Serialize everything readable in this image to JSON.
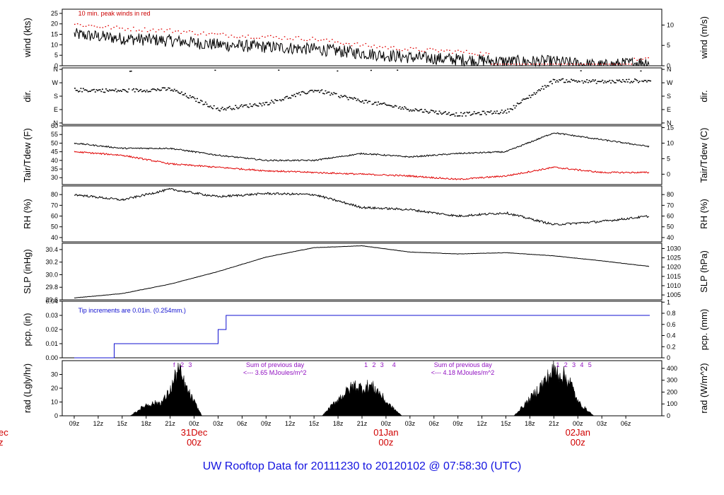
{
  "footer_title": "UW Rooftop Data for 20111230  to  20120102 @ 07:58:30  (UTC)",
  "colors": {
    "axis": "#000000",
    "series_black": "#000000",
    "series_red": "#e00000",
    "precip": "#1010d0",
    "annot_red": "#cc0000",
    "annot_purple": "#9010c0",
    "footer": "#1414e0",
    "day_label": "#d00000"
  },
  "x_axis": {
    "hour_ticks": [
      "09z",
      "12z",
      "15z",
      "18z",
      "21z",
      "00z",
      "03z",
      "06z",
      "09z",
      "12z",
      "15z",
      "18z",
      "21z",
      "00z",
      "03z",
      "06z",
      "09z",
      "12z",
      "15z",
      "18z",
      "21z",
      "00z",
      "03z",
      "06z"
    ],
    "day_labels": [
      {
        "day": "31Dec",
        "hour": "00z"
      },
      {
        "day": "01Jan",
        "hour": "00z"
      },
      {
        "day": "02Jan",
        "hour": "00z"
      }
    ],
    "clipped_left_day": "ec",
    "clipped_left_hour": "z"
  },
  "panels": [
    {
      "key": "wind",
      "left_label": "wind (kts)",
      "right_label": "wind (m/s)",
      "left_ticks": [
        "0",
        "5",
        "10",
        "15",
        "20",
        "25"
      ],
      "right_ticks": [
        "0",
        "5",
        "10"
      ],
      "annotation": "10 min. peak winds in red"
    },
    {
      "key": "dir",
      "left_label": "dir.",
      "right_label": "dir.",
      "left_ticks": [
        "N",
        "E",
        "S",
        "W",
        "N"
      ],
      "right_ticks": [
        "N",
        "E",
        "S",
        "W",
        "N"
      ]
    },
    {
      "key": "temp",
      "left_label": "Tair/Tdew (F)",
      "right_label": "Tair/Tdew (C)",
      "left_ticks": [
        "30",
        "35",
        "40",
        "45",
        "50",
        "55",
        "60"
      ],
      "right_ticks": [
        "0",
        "5",
        "10",
        "15"
      ]
    },
    {
      "key": "rh",
      "left_label": "RH (%)",
      "right_label": "RH (%)",
      "left_ticks": [
        "40",
        "50",
        "60",
        "70",
        "80"
      ],
      "right_ticks": [
        "40",
        "50",
        "60",
        "70",
        "80"
      ]
    },
    {
      "key": "slp",
      "left_label": "SLP (inHg)",
      "right_label": "SLP (hPa)",
      "left_ticks": [
        "29.6",
        "29.8",
        "30.0",
        "30.2",
        "30.4"
      ],
      "right_ticks": [
        "1005",
        "1010",
        "1015",
        "1020",
        "1025",
        "1030"
      ]
    },
    {
      "key": "pcp",
      "left_label": "pcp. (in)",
      "right_label": "pcp. (mm)",
      "left_ticks": [
        "0.00",
        "0.01",
        "0.02",
        "0.03",
        "0.04"
      ],
      "right_ticks": [
        "0",
        "0.2",
        "0.4",
        "0.6",
        "0.8",
        "1"
      ],
      "annotation": "Tip increments are 0.01in. (0.254mm.)"
    },
    {
      "key": "rad",
      "left_label": "rad (Lgly/hr)",
      "right_label": "rad (W/m^2)",
      "left_ticks": [
        "0",
        "10",
        "20",
        "30"
      ],
      "right_ticks": [
        "0",
        "100",
        "200",
        "300",
        "400"
      ],
      "annotations": [
        {
          "line1": "Sum of previous day",
          "line2": "<--- 3.65 MJoules/m^2"
        },
        {
          "line1": "Sum of previous day",
          "line2": "<--- 4.18 MJoules/m^2"
        }
      ],
      "markers": [
        [
          "f",
          "2",
          "3"
        ],
        [
          "1",
          "2",
          "3",
          "4"
        ],
        [
          "1",
          "2",
          "3",
          "4",
          "5"
        ]
      ]
    }
  ],
  "chart_data": [
    {
      "type": "line",
      "key": "wind",
      "xlabel": "",
      "ylabel": "wind (kts)",
      "ylim": [
        0,
        27
      ],
      "series": [
        {
          "name": "",
          "x": [
            0,
            6,
            12,
            18,
            24,
            30,
            36,
            42,
            48,
            54,
            60,
            66,
            72
          ],
          "y": [
            15,
            13,
            12,
            10,
            9,
            8,
            6,
            4,
            3,
            2,
            2,
            0,
            2
          ]
        },
        {
          "name": "10 min. peak winds",
          "x": [
            0,
            6,
            12,
            18,
            24,
            30,
            36,
            42,
            48,
            54,
            60,
            66,
            72
          ],
          "y": [
            20,
            18,
            17,
            15,
            14,
            13,
            10,
            8,
            7,
            5,
            4,
            1,
            4
          ]
        }
      ]
    },
    {
      "type": "scatter",
      "key": "dir",
      "xlabel": "",
      "ylabel": "dir.",
      "ylim": [
        "N",
        "N"
      ],
      "series": [
        {
          "name": "",
          "x": [
            0,
            6,
            12,
            18,
            24,
            30,
            36,
            42,
            48,
            54,
            60,
            66,
            72
          ],
          "y": [
            225,
            220,
            230,
            95,
            135,
            225,
            150,
            95,
            60,
            80,
            290,
            280,
            290
          ]
        }
      ]
    },
    {
      "type": "line",
      "key": "temp",
      "xlabel": "",
      "ylabel": "Tair/Tdew (F)",
      "ylim": [
        26,
        60
      ],
      "series": [
        {
          "name": "Tair",
          "x": [
            0,
            6,
            12,
            18,
            24,
            30,
            36,
            42,
            48,
            54,
            60,
            66,
            72
          ],
          "y": [
            50,
            47,
            47,
            43,
            40,
            40,
            44,
            42,
            44,
            45,
            56,
            52,
            48
          ]
        },
        {
          "name": "Tdew",
          "x": [
            0,
            6,
            12,
            18,
            24,
            30,
            36,
            42,
            48,
            54,
            60,
            66,
            72
          ],
          "y": [
            45,
            43,
            38,
            36,
            34,
            33,
            32,
            31,
            29,
            31,
            36,
            33,
            33
          ]
        }
      ]
    },
    {
      "type": "line",
      "key": "rh",
      "xlabel": "",
      "ylabel": "RH (%)",
      "ylim": [
        36,
        88
      ],
      "series": [
        {
          "name": "",
          "x": [
            0,
            6,
            12,
            18,
            24,
            30,
            36,
            42,
            48,
            54,
            60,
            66,
            72
          ],
          "y": [
            80,
            75,
            85,
            78,
            81,
            80,
            68,
            66,
            60,
            63,
            52,
            55,
            60
          ]
        }
      ]
    },
    {
      "type": "line",
      "key": "slp",
      "xlabel": "",
      "ylabel": "SLP (inHg)",
      "ylim": [
        29.6,
        30.5
      ],
      "series": [
        {
          "name": "",
          "x": [
            0,
            6,
            12,
            18,
            24,
            30,
            36,
            42,
            48,
            54,
            60,
            66,
            72
          ],
          "y": [
            29.63,
            29.7,
            29.85,
            30.05,
            30.28,
            30.43,
            30.46,
            30.36,
            30.33,
            30.35,
            30.3,
            30.22,
            30.13
          ]
        }
      ]
    },
    {
      "type": "line",
      "key": "pcp",
      "xlabel": "",
      "ylabel": "pcp. (in)",
      "ylim": [
        0,
        0.04
      ],
      "series": [
        {
          "name": "",
          "x": [
            0,
            5,
            5,
            18,
            18,
            19,
            19,
            72
          ],
          "y": [
            0,
            0,
            0.01,
            0.01,
            0.02,
            0.02,
            0.03,
            0.03
          ]
        }
      ]
    },
    {
      "type": "area",
      "key": "rad",
      "xlabel": "",
      "ylabel": "rad (Lgly/hr)",
      "ylim": [
        0,
        40
      ],
      "series": [
        {
          "name": "",
          "x": [
            7,
            9,
            11,
            12,
            13,
            14,
            15,
            16,
            31,
            33,
            35,
            36,
            37,
            38,
            39,
            41,
            55,
            57,
            59,
            60,
            61,
            62,
            63,
            65
          ],
          "y": [
            0,
            8,
            10,
            18,
            34,
            20,
            10,
            0,
            0,
            12,
            22,
            20,
            22,
            18,
            10,
            0,
            0,
            12,
            26,
            33,
            30,
            25,
            10,
            0
          ]
        }
      ]
    }
  ]
}
